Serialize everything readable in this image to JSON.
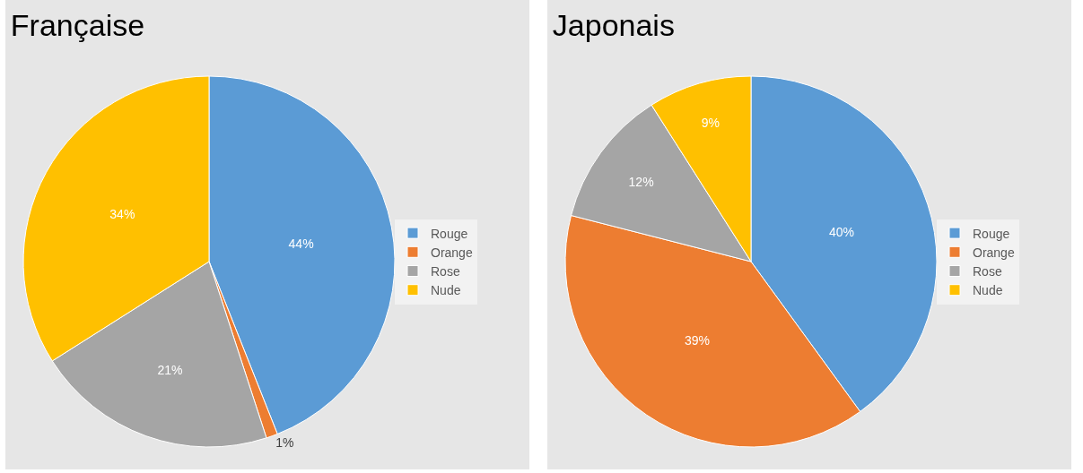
{
  "chart_data": [
    {
      "type": "pie",
      "title": "Française",
      "categories": [
        "Rouge",
        "Orange",
        "Rose",
        "Nude"
      ],
      "values": [
        44,
        1,
        21,
        34
      ],
      "value_labels": [
        "44%",
        "1%",
        "21%",
        "34%"
      ],
      "colors": [
        "#5b9bd5",
        "#ed7d31",
        "#a5a5a5",
        "#ffc000"
      ],
      "legend": "right"
    },
    {
      "type": "pie",
      "title": "Japonais",
      "categories": [
        "Rouge",
        "Orange",
        "Rose",
        "Nude"
      ],
      "values": [
        40,
        39,
        12,
        9
      ],
      "value_labels": [
        "40%",
        "39%",
        "12%",
        "9%"
      ],
      "colors": [
        "#5b9bd5",
        "#ed7d31",
        "#a5a5a5",
        "#ffc000"
      ],
      "legend": "right"
    }
  ]
}
